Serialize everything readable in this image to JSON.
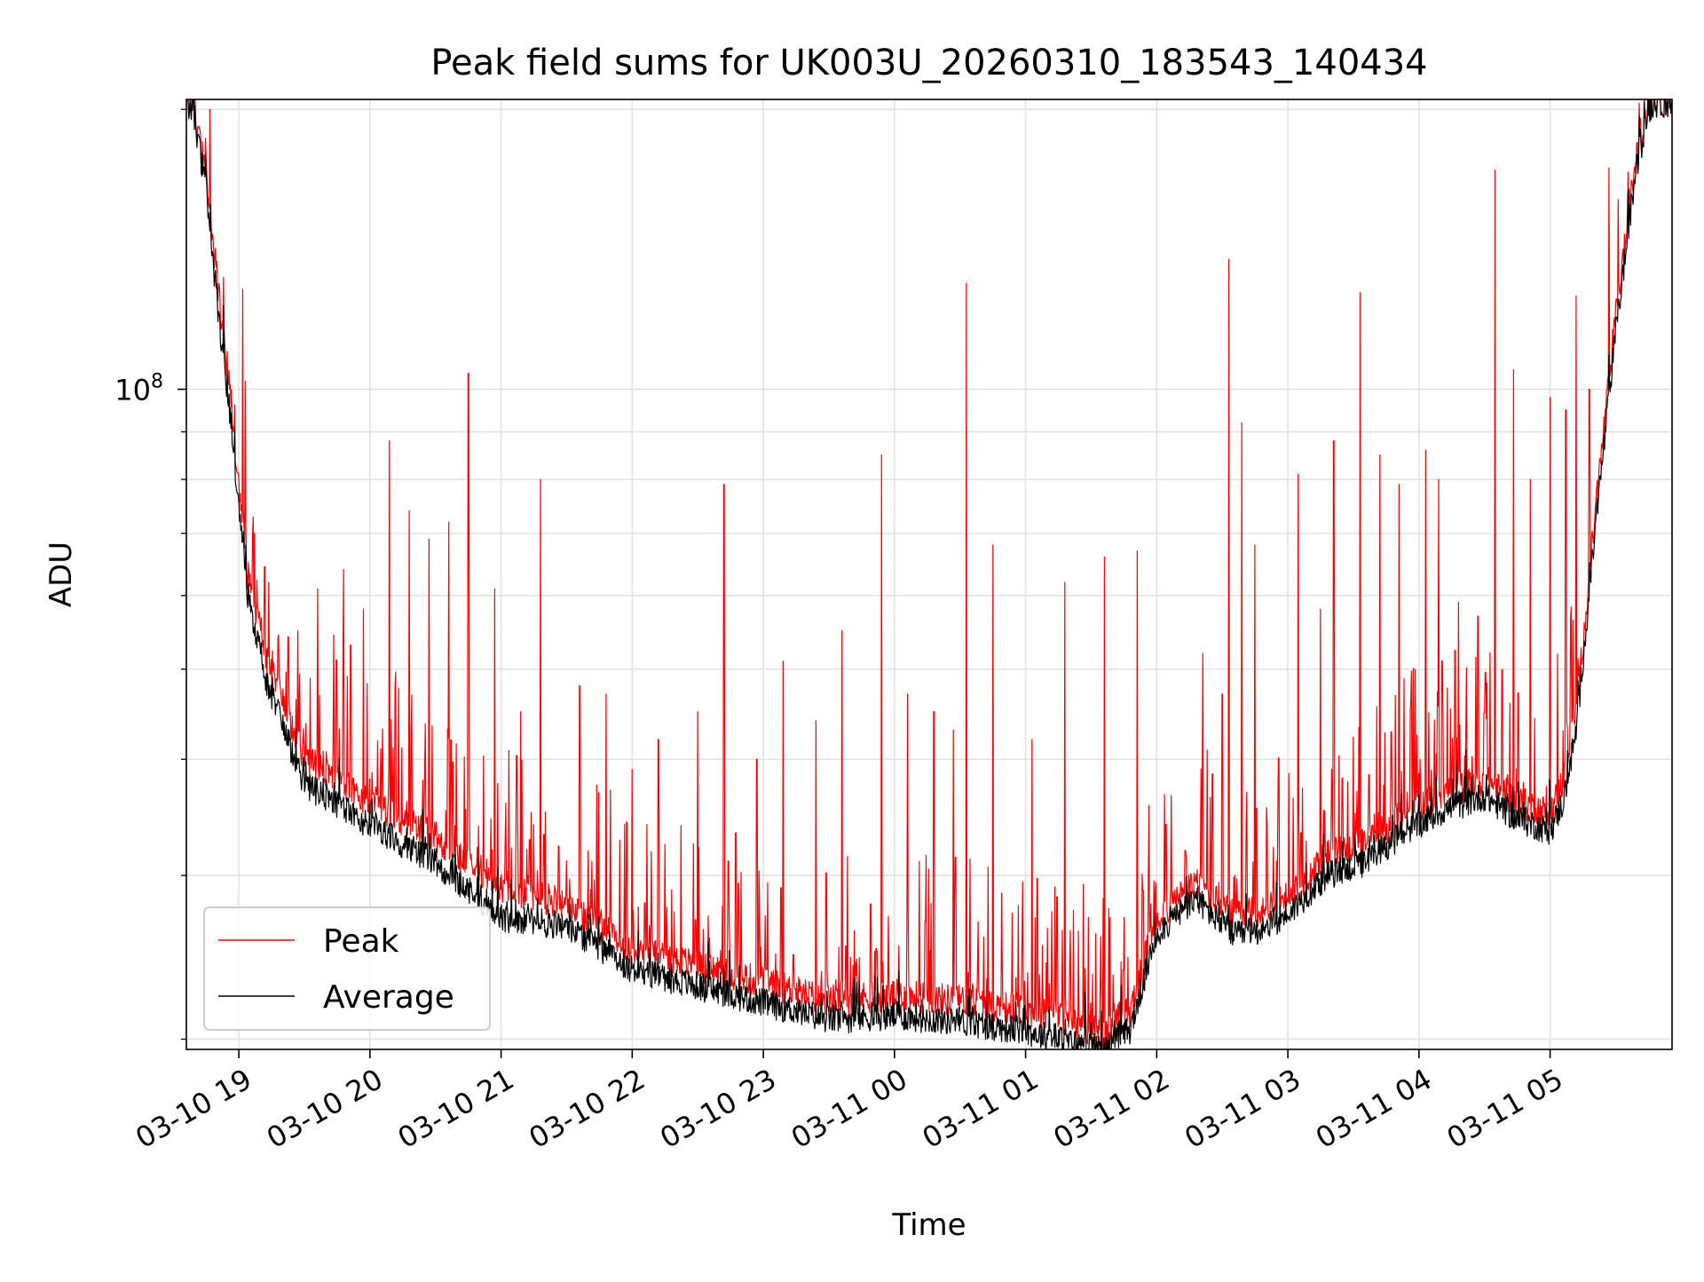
{
  "chart_data": {
    "type": "line",
    "title": "Peak field sums for UK003U_20260310_183543_140434",
    "xlabel": "Time",
    "ylabel": "ADU",
    "yscale": "log",
    "ylim": [
      19500000,
      205000000
    ],
    "xlim_hours": [
      18.6,
      29.93
    ],
    "grid": true,
    "legend_position": "lower-left",
    "x_ticks": [
      {
        "hour": 19,
        "label": "03-10 19"
      },
      {
        "hour": 20,
        "label": "03-10 20"
      },
      {
        "hour": 21,
        "label": "03-10 21"
      },
      {
        "hour": 22,
        "label": "03-10 22"
      },
      {
        "hour": 23,
        "label": "03-10 23"
      },
      {
        "hour": 24,
        "label": "03-11 00"
      },
      {
        "hour": 25,
        "label": "03-11 01"
      },
      {
        "hour": 26,
        "label": "03-11 02"
      },
      {
        "hour": 27,
        "label": "03-11 03"
      },
      {
        "hour": 28,
        "label": "03-11 04"
      },
      {
        "hour": 29,
        "label": "03-11 05"
      }
    ],
    "y_major_tick": {
      "value": 100000000,
      "label_base": "10",
      "label_exp": "8"
    },
    "y_minor_ticks": [
      20000000,
      30000000,
      40000000,
      50000000,
      60000000,
      70000000,
      80000000,
      90000000,
      200000000
    ],
    "series": [
      {
        "name": "Peak",
        "color": "#ff0000",
        "baseline_hours": [
          18.6,
          18.65,
          18.75,
          18.85,
          18.95,
          19.05,
          19.2,
          19.5,
          20.0,
          20.5,
          21.0,
          21.5,
          22.0,
          22.5,
          23.0,
          23.5,
          24.0,
          24.5,
          25.0,
          25.3,
          25.6,
          25.8,
          26.0,
          26.3,
          26.6,
          26.8,
          27.0,
          27.3,
          27.6,
          27.9,
          28.2,
          28.5,
          28.75,
          29.0,
          29.1,
          29.2,
          29.35,
          29.5,
          29.65,
          29.75,
          29.8,
          29.93
        ],
        "baseline_values": [
          204000000,
          202000000,
          170000000,
          125000000,
          95000000,
          65000000,
          52000000,
          40000000,
          36000000,
          33000000,
          29000000,
          28000000,
          25000000,
          24000000,
          23000000,
          22000000,
          22300000,
          22000000,
          21500000,
          21000000,
          20200000,
          21500000,
          27000000,
          29500000,
          27000000,
          27500000,
          28500000,
          31500000,
          32500000,
          35000000,
          37000000,
          38000000,
          36000000,
          35000000,
          38000000,
          45000000,
          75000000,
          120000000,
          175000000,
          202000000,
          204000000,
          204000000
        ],
        "spikes": [
          {
            "hour": 18.78,
            "value": 200000000
          },
          {
            "hour": 18.85,
            "value": 130000000
          },
          {
            "hour": 18.93,
            "value": 100000000
          },
          {
            "hour": 19.03,
            "value": 128000000
          },
          {
            "hour": 19.05,
            "value": 102000000
          },
          {
            "hour": 19.12,
            "value": 70000000
          },
          {
            "hour": 19.3,
            "value": 54000000
          },
          {
            "hour": 19.45,
            "value": 55000000
          },
          {
            "hour": 19.6,
            "value": 61000000
          },
          {
            "hour": 19.8,
            "value": 64000000
          },
          {
            "hour": 19.95,
            "value": 58000000
          },
          {
            "hour": 20.15,
            "value": 88000000
          },
          {
            "hour": 20.3,
            "value": 74000000
          },
          {
            "hour": 20.45,
            "value": 69000000
          },
          {
            "hour": 20.6,
            "value": 72000000
          },
          {
            "hour": 20.75,
            "value": 104000000
          },
          {
            "hour": 20.95,
            "value": 61000000
          },
          {
            "hour": 21.15,
            "value": 45000000
          },
          {
            "hour": 21.3,
            "value": 80000000
          },
          {
            "hour": 21.6,
            "value": 48000000
          },
          {
            "hour": 21.8,
            "value": 47000000
          },
          {
            "hour": 22.0,
            "value": 39000000
          },
          {
            "hour": 22.2,
            "value": 42000000
          },
          {
            "hour": 22.5,
            "value": 45000000
          },
          {
            "hour": 22.7,
            "value": 79000000
          },
          {
            "hour": 22.95,
            "value": 40000000
          },
          {
            "hour": 23.15,
            "value": 51000000
          },
          {
            "hour": 23.4,
            "value": 44000000
          },
          {
            "hour": 23.6,
            "value": 55000000
          },
          {
            "hour": 23.9,
            "value": 85000000
          },
          {
            "hour": 24.1,
            "value": 47000000
          },
          {
            "hour": 24.3,
            "value": 45000000
          },
          {
            "hour": 24.45,
            "value": 43000000
          },
          {
            "hour": 24.55,
            "value": 130000000
          },
          {
            "hour": 24.75,
            "value": 68000000
          },
          {
            "hour": 25.05,
            "value": 42000000
          },
          {
            "hour": 25.3,
            "value": 62000000
          },
          {
            "hour": 25.6,
            "value": 66000000
          },
          {
            "hour": 25.85,
            "value": 67000000
          },
          {
            "hour": 26.35,
            "value": 52000000
          },
          {
            "hour": 26.5,
            "value": 47000000
          },
          {
            "hour": 26.55,
            "value": 138000000
          },
          {
            "hour": 26.65,
            "value": 92000000
          },
          {
            "hour": 26.75,
            "value": 68000000
          },
          {
            "hour": 27.08,
            "value": 81000000
          },
          {
            "hour": 27.25,
            "value": 58000000
          },
          {
            "hour": 27.35,
            "value": 88000000
          },
          {
            "hour": 27.55,
            "value": 127000000
          },
          {
            "hour": 27.7,
            "value": 85000000
          },
          {
            "hour": 27.85,
            "value": 79000000
          },
          {
            "hour": 28.05,
            "value": 86000000
          },
          {
            "hour": 28.15,
            "value": 80000000
          },
          {
            "hour": 28.3,
            "value": 59000000
          },
          {
            "hour": 28.45,
            "value": 57000000
          },
          {
            "hour": 28.58,
            "value": 172000000
          },
          {
            "hour": 28.72,
            "value": 105000000
          },
          {
            "hour": 28.85,
            "value": 80000000
          },
          {
            "hour": 29.0,
            "value": 98000000
          },
          {
            "hour": 29.12,
            "value": 95000000
          },
          {
            "hour": 29.2,
            "value": 126000000
          },
          {
            "hour": 29.3,
            "value": 100000000
          },
          {
            "hour": 29.45,
            "value": 173000000
          },
          {
            "hour": 29.52,
            "value": 160000000
          }
        ]
      },
      {
        "name": "Average",
        "color": "#000000",
        "baseline_hours": [
          18.6,
          18.65,
          18.75,
          18.85,
          18.95,
          19.05,
          19.2,
          19.5,
          20.0,
          20.5,
          21.0,
          21.5,
          22.0,
          22.5,
          23.0,
          23.5,
          24.0,
          24.5,
          25.0,
          25.3,
          25.6,
          25.8,
          26.0,
          26.3,
          26.6,
          26.8,
          27.0,
          27.3,
          27.6,
          27.9,
          28.2,
          28.5,
          28.75,
          29.0,
          29.1,
          29.2,
          29.35,
          29.5,
          29.65,
          29.75,
          29.8,
          29.93
        ],
        "baseline_values": [
          203000000,
          200000000,
          165000000,
          118000000,
          90000000,
          62000000,
          49000000,
          37500000,
          34000000,
          31000000,
          27000000,
          26500000,
          23800000,
          22800000,
          21900000,
          21000000,
          21200000,
          20900000,
          20400000,
          19900000,
          19500000,
          20500000,
          26000000,
          28300000,
          25800000,
          26300000,
          27300000,
          30000000,
          31000000,
          33500000,
          35300000,
          36500000,
          34500000,
          33500000,
          36000000,
          43000000,
          72000000,
          115000000,
          170000000,
          200000000,
          203000000,
          203000000
        ]
      }
    ]
  }
}
